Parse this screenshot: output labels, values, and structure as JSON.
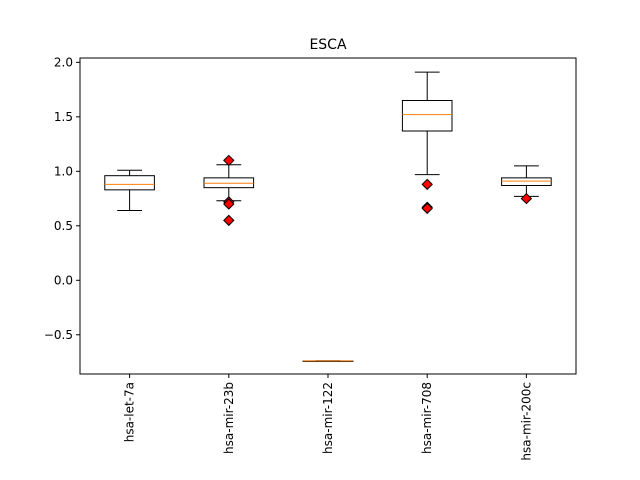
{
  "chart_data": {
    "type": "box",
    "title": "ESCA",
    "xlabel": "",
    "ylabel": "",
    "ylim": [
      -0.86,
      2.04
    ],
    "yticks": [
      -0.5,
      0.0,
      0.5,
      1.0,
      1.5,
      2.0
    ],
    "ytick_labels": [
      "−0.5",
      "0.0",
      "0.5",
      "1.0",
      "1.5",
      "2.0"
    ],
    "grid": false,
    "categories": [
      "hsa-let-7a",
      "hsa-mir-23b",
      "hsa-mir-122",
      "hsa-mir-708",
      "hsa-mir-200c"
    ],
    "boxes": [
      {
        "label": "hsa-let-7a",
        "whisker_low": 0.64,
        "q1": 0.83,
        "median": 0.88,
        "q3": 0.96,
        "whisker_high": 1.01,
        "outliers": []
      },
      {
        "label": "hsa-mir-23b",
        "whisker_low": 0.73,
        "q1": 0.85,
        "median": 0.89,
        "q3": 0.94,
        "whisker_high": 1.06,
        "outliers": [
          1.1,
          0.72,
          0.7,
          0.55
        ]
      },
      {
        "label": "hsa-mir-122",
        "whisker_low": -0.74,
        "q1": -0.74,
        "median": -0.74,
        "q3": -0.74,
        "whisker_high": -0.74,
        "outliers": []
      },
      {
        "label": "hsa-mir-708",
        "whisker_low": 0.97,
        "q1": 1.37,
        "median": 1.52,
        "q3": 1.65,
        "whisker_high": 1.91,
        "outliers": [
          0.88,
          0.67,
          0.66
        ]
      },
      {
        "label": "hsa-mir-200c",
        "whisker_low": 0.77,
        "q1": 0.87,
        "median": 0.91,
        "q3": 0.94,
        "whisker_high": 1.05,
        "outliers": [
          0.75
        ]
      }
    ],
    "colors": {
      "box": "#000000",
      "median": "#ff7f0e",
      "outlier_fill": "#ff0000",
      "outlier_edge": "#000000",
      "background": "#ffffff"
    }
  }
}
